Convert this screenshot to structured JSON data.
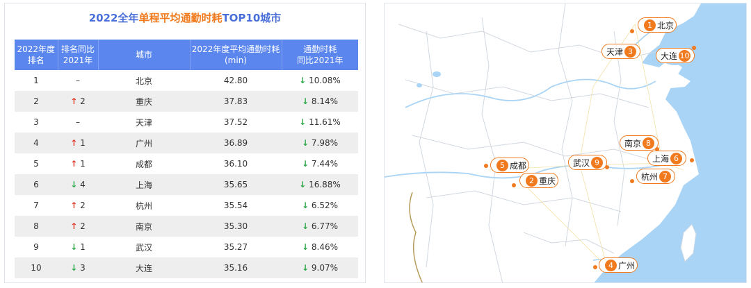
{
  "title_part1": "2022全年",
  "title_part2": "单程平均通勤时耗",
  "title_part3": "TOP10城市",
  "headers": {
    "rank": [
      "2022年度",
      "排名"
    ],
    "rank_change": [
      "排名同比",
      "2021年"
    ],
    "city": [
      "城市"
    ],
    "time": [
      "2022年度平均通勤时耗",
      "(min)"
    ],
    "change": [
      "通勤时耗",
      "同比2021年"
    ]
  },
  "chart_data": {
    "type": "table",
    "title": "2022全年单程平均通勤时耗TOP10城市",
    "rows": [
      {
        "rank": "1",
        "dir": "–",
        "delta": "",
        "city": "北京",
        "time": "42.80",
        "change": "10.08%"
      },
      {
        "rank": "2",
        "dir": "↑",
        "delta": "2",
        "city": "重庆",
        "time": "37.83",
        "change": "8.14%"
      },
      {
        "rank": "3",
        "dir": "–",
        "delta": "",
        "city": "天津",
        "time": "37.52",
        "change": "11.61%"
      },
      {
        "rank": "4",
        "dir": "↑",
        "delta": "1",
        "city": "广州",
        "time": "36.89",
        "change": "7.98%"
      },
      {
        "rank": "5",
        "dir": "↑",
        "delta": "1",
        "city": "成都",
        "time": "36.10",
        "change": "7.44%"
      },
      {
        "rank": "6",
        "dir": "↓",
        "delta": "4",
        "city": "上海",
        "time": "35.65",
        "change": "16.88%"
      },
      {
        "rank": "7",
        "dir": "↑",
        "delta": "2",
        "city": "杭州",
        "time": "35.54",
        "change": "6.52%"
      },
      {
        "rank": "8",
        "dir": "↑",
        "delta": "2",
        "city": "南京",
        "time": "35.30",
        "change": "6.77%"
      },
      {
        "rank": "9",
        "dir": "↓",
        "delta": "1",
        "city": "武汉",
        "time": "35.27",
        "change": "8.46%"
      },
      {
        "rank": "10",
        "dir": "↓",
        "delta": "3",
        "city": "大连",
        "time": "35.16",
        "change": "9.07%"
      }
    ]
  },
  "change_arrow": "↓",
  "map_labels": [
    {
      "num": "1",
      "city": "北京"
    },
    {
      "num": "3",
      "city": "天津"
    },
    {
      "num": "10",
      "city": "大连"
    },
    {
      "num": "8",
      "city": "南京"
    },
    {
      "num": "6",
      "city": "上海"
    },
    {
      "num": "7",
      "city": "杭州"
    },
    {
      "num": "9",
      "city": "武汉"
    },
    {
      "num": "5",
      "city": "成都"
    },
    {
      "num": "2",
      "city": "重庆"
    },
    {
      "num": "4",
      "city": "广州"
    }
  ],
  "colors": {
    "accent": "#f07a1d",
    "header": "#5a86ee",
    "title": "#4a6fd8",
    "up": "#e03a2c",
    "down": "#2ea84a",
    "sea": "#a9d4f5"
  }
}
